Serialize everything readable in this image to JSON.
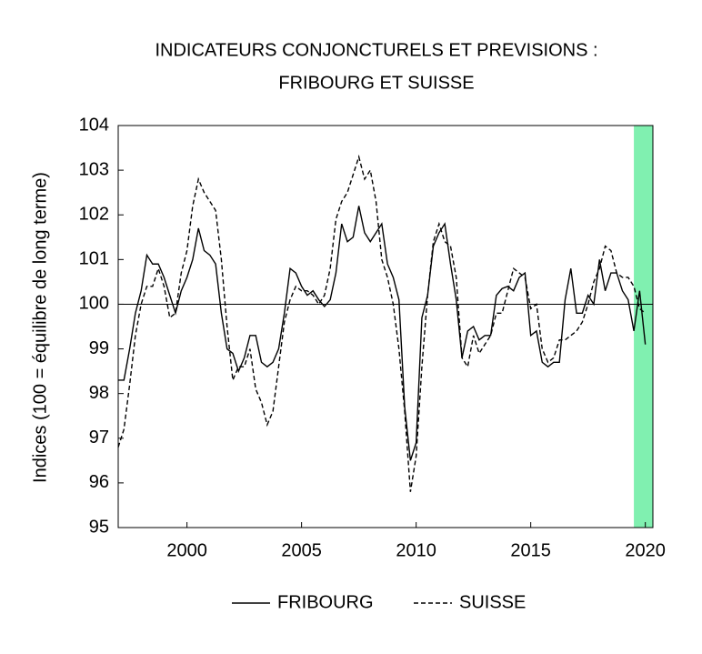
{
  "chart_data": {
    "type": "line",
    "title": [
      "INDICATEURS CONJONCTURELS ET PREVISIONS :",
      "FRIBOURG ET SUISSE"
    ],
    "y_label": "Indices (100 = équilibre de long terme)",
    "x": [
      1997,
      1997.25,
      1997.5,
      1997.75,
      1998,
      1998.25,
      1998.5,
      1998.75,
      1999,
      1999.25,
      1999.5,
      1999.75,
      2000,
      2000.25,
      2000.5,
      2000.75,
      2001,
      2001.25,
      2001.5,
      2001.75,
      2002,
      2002.25,
      2002.5,
      2002.75,
      2003,
      2003.25,
      2003.5,
      2003.75,
      2004,
      2004.25,
      2004.5,
      2004.75,
      2005,
      2005.25,
      2005.5,
      2005.75,
      2006,
      2006.25,
      2006.5,
      2006.75,
      2007,
      2007.25,
      2007.5,
      2007.75,
      2008,
      2008.25,
      2008.5,
      2008.75,
      2009,
      2009.25,
      2009.5,
      2009.75,
      2010,
      2010.25,
      2010.5,
      2010.75,
      2011,
      2011.25,
      2011.5,
      2011.75,
      2012,
      2012.25,
      2012.5,
      2012.75,
      2013,
      2013.25,
      2013.5,
      2013.75,
      2014,
      2014.25,
      2014.5,
      2014.75,
      2015,
      2015.25,
      2015.5,
      2015.75,
      2016,
      2016.25,
      2016.5,
      2016.75,
      2017,
      2017.25,
      2017.5,
      2017.75,
      2018,
      2018.25,
      2018.5,
      2018.75,
      2019,
      2019.25,
      2019.5,
      2019.75,
      2020
    ],
    "series": [
      {
        "name": "FRIBOURG",
        "color": "#000000",
        "line_style": "solid",
        "values": [
          98.3,
          98.3,
          99.0,
          99.8,
          100.3,
          101.1,
          100.9,
          100.9,
          100.6,
          100.2,
          99.8,
          100.3,
          100.6,
          101.0,
          101.7,
          101.2,
          101.1,
          100.9,
          99.8,
          99.0,
          98.9,
          98.5,
          98.8,
          99.3,
          99.3,
          98.7,
          98.6,
          98.7,
          99.0,
          99.8,
          100.8,
          100.7,
          100.4,
          100.2,
          100.3,
          100.1,
          99.95,
          100.1,
          100.7,
          101.8,
          101.4,
          101.5,
          102.2,
          101.6,
          101.4,
          101.6,
          101.8,
          100.9,
          100.6,
          100.1,
          97.7,
          96.5,
          96.9,
          99.7,
          100.2,
          101.3,
          101.6,
          101.8,
          100.9,
          100.1,
          98.8,
          99.4,
          99.5,
          99.2,
          99.3,
          99.3,
          100.2,
          100.35,
          100.4,
          100.3,
          100.6,
          100.7,
          99.3,
          99.4,
          98.7,
          98.6,
          98.7,
          98.7,
          100.1,
          100.8,
          99.8,
          99.8,
          100.2,
          100.0,
          101.0,
          100.3,
          100.7,
          100.7,
          100.3,
          100.1,
          99.4,
          100.3,
          99.1
        ]
      },
      {
        "name": "SUISSE",
        "color": "#000000",
        "line_style": "dashed",
        "values": [
          96.8,
          97.2,
          98.2,
          99.3,
          100.0,
          100.4,
          100.4,
          100.8,
          100.4,
          99.7,
          99.8,
          100.7,
          101.2,
          102.2,
          102.8,
          102.5,
          102.3,
          102.1,
          101.0,
          99.5,
          98.3,
          98.6,
          98.6,
          99.0,
          98.1,
          97.8,
          97.3,
          97.6,
          98.6,
          99.6,
          100.1,
          100.4,
          100.3,
          100.3,
          100.2,
          100.0,
          100.2,
          100.8,
          101.9,
          102.3,
          102.5,
          102.9,
          103.3,
          102.8,
          103.0,
          102.3,
          101.0,
          100.6,
          100.0,
          99.0,
          97.6,
          95.8,
          96.6,
          98.6,
          100.2,
          101.4,
          101.8,
          101.4,
          101.3,
          100.6,
          98.8,
          98.6,
          99.3,
          98.9,
          99.1,
          99.3,
          99.8,
          99.8,
          100.3,
          100.8,
          100.7,
          100.6,
          99.9,
          100.0,
          99.0,
          98.7,
          98.8,
          99.2,
          99.2,
          99.3,
          99.4,
          99.6,
          100.0,
          100.5,
          100.8,
          101.3,
          101.2,
          100.7,
          100.6,
          100.6,
          100.4,
          99.9,
          99.8
        ]
      }
    ],
    "xlim": [
      1997,
      2020.33
    ],
    "xticks": [
      2000,
      2005,
      2010,
      2015,
      2020
    ],
    "ylim": [
      95,
      104
    ],
    "yticks": [
      95,
      96,
      97,
      98,
      99,
      100,
      101,
      102,
      103,
      104
    ],
    "reference_line": 100,
    "forecast_band": {
      "range": [
        2019.5,
        2020.33
      ],
      "color": "#80f0b0"
    },
    "legend": "bottom",
    "grid": false
  }
}
